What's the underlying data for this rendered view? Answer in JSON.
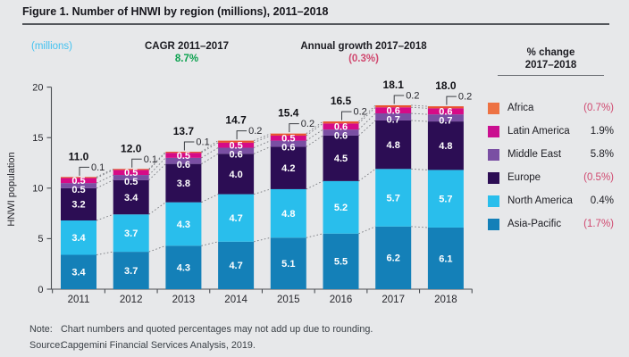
{
  "title": "Figure 1. Number of HNWI by region (millions), 2011–2018",
  "header": {
    "units_label": "(millions)",
    "cagr_label": "CAGR 2011–2017",
    "cagr_value": "8.7%",
    "growth_label": "Annual growth 2017–2018",
    "growth_value": "(0.3%)"
  },
  "legend": {
    "header_line1": "% change",
    "header_line2": "2017–2018",
    "items": [
      {
        "label": "Africa",
        "change": "(0.7%)",
        "negative": true,
        "color": "#ED7243"
      },
      {
        "label": "Latin America",
        "change": "1.9%",
        "negative": false,
        "color": "#CA0F90"
      },
      {
        "label": "Middle East",
        "change": "5.8%",
        "negative": false,
        "color": "#7A4FA3"
      },
      {
        "label": "Europe",
        "change": "(0.5%)",
        "negative": true,
        "color": "#2C0D54"
      },
      {
        "label": "North America",
        "change": "0.4%",
        "negative": false,
        "color": "#29BEEC"
      },
      {
        "label": "Asia-Pacific",
        "change": "(1.7%)",
        "negative": true,
        "color": "#1480B8"
      }
    ]
  },
  "chart_data": {
    "type": "bar",
    "subtype": "stacked",
    "categories": [
      "2011",
      "2012",
      "2013",
      "2014",
      "2015",
      "2016",
      "2017",
      "2018"
    ],
    "series": [
      {
        "name": "Asia-Pacific",
        "color": "#1480B8",
        "values": [
          3.4,
          3.7,
          4.3,
          4.7,
          5.1,
          5.5,
          6.2,
          6.1
        ]
      },
      {
        "name": "North America",
        "color": "#29BEEC",
        "values": [
          3.4,
          3.7,
          4.3,
          4.7,
          4.8,
          5.2,
          5.7,
          5.7
        ]
      },
      {
        "name": "Europe",
        "color": "#2C0D54",
        "values": [
          3.2,
          3.4,
          3.8,
          4.0,
          4.2,
          4.5,
          4.8,
          4.8
        ]
      },
      {
        "name": "Middle East",
        "color": "#7A4FA3",
        "values": [
          0.5,
          0.5,
          0.6,
          0.6,
          0.6,
          0.6,
          0.7,
          0.7
        ]
      },
      {
        "name": "Latin America",
        "color": "#D60B87",
        "values": [
          0.5,
          0.5,
          0.5,
          0.5,
          0.5,
          0.6,
          0.6,
          0.6
        ]
      },
      {
        "name": "Africa",
        "color": "#E8532F",
        "values": [
          0.1,
          0.1,
          0.1,
          0.2,
          0.2,
          0.2,
          0.2,
          0.2
        ],
        "callout": true
      }
    ],
    "totals": [
      "11.0",
      "12.0",
      "13.7",
      "14.7",
      "15.4",
      "16.5",
      "18.1",
      "18.0"
    ],
    "ylabel": "HNWI population",
    "yticks": [
      0,
      5,
      10,
      15,
      20
    ],
    "ylim": [
      0,
      20
    ],
    "grid": false,
    "legend_position": "right"
  },
  "note": {
    "label": "Note:",
    "text": "Chart numbers and quoted percentages may not add up due to rounding."
  },
  "source": {
    "label": "Source:",
    "text": "Capgemini Financial Services Analysis, 2019."
  }
}
